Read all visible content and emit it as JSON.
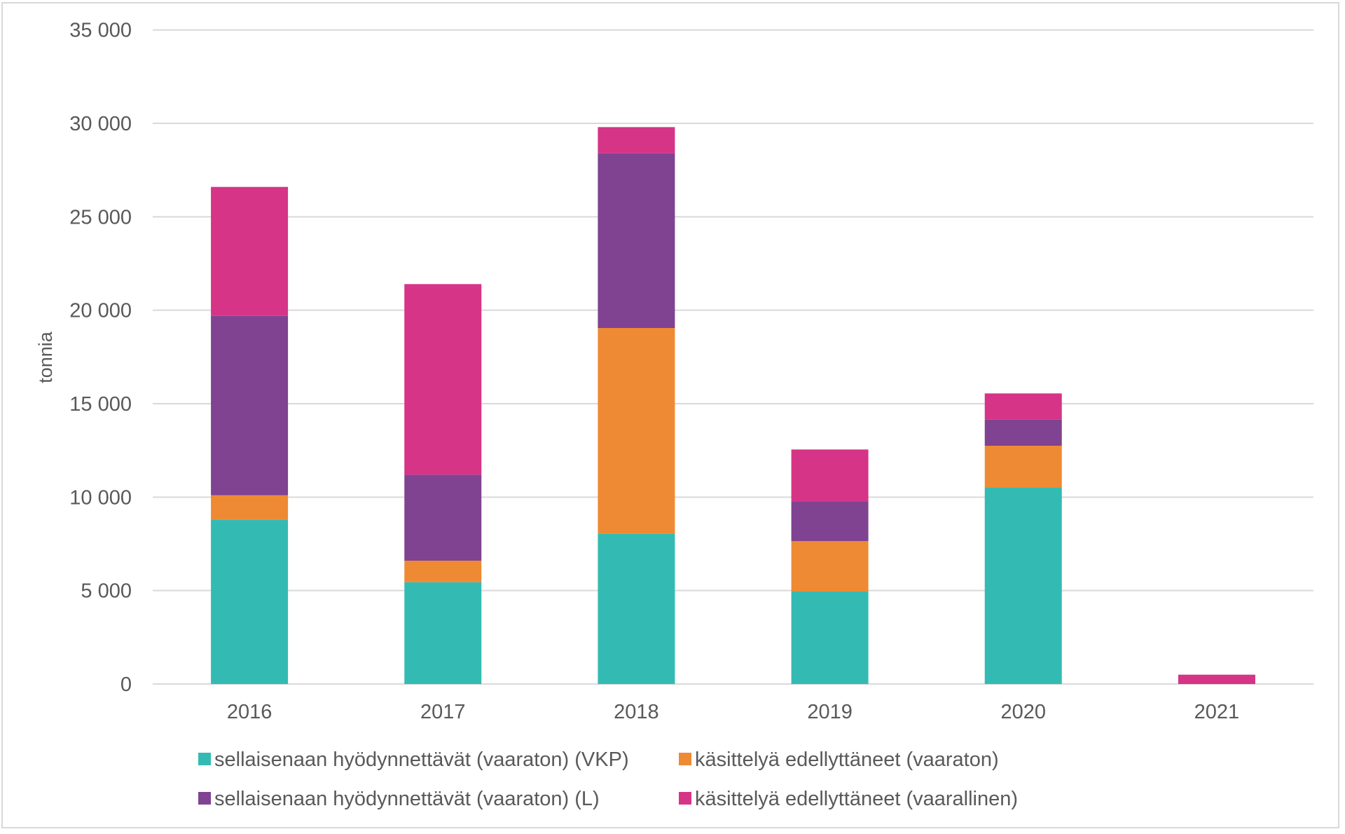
{
  "chart_data": {
    "type": "bar",
    "stacked": true,
    "title": "",
    "xlabel": "",
    "ylabel": "tonnia",
    "ylim": [
      0,
      35000
    ],
    "yticks": [
      0,
      5000,
      10000,
      15000,
      20000,
      25000,
      30000,
      35000
    ],
    "ytick_labels": [
      "0",
      "5 000",
      "10 000",
      "15 000",
      "20 000",
      "25 000",
      "30 000",
      "35 000"
    ],
    "grid": true,
    "legend_position": "bottom",
    "categories": [
      "2016",
      "2017",
      "2018",
      "2019",
      "2020",
      "2021"
    ],
    "series": [
      {
        "name": "sellaisenaan hyödynnettävät (vaaraton) (VKP)",
        "color": "#33BBB3",
        "values": [
          8800,
          5450,
          8050,
          4950,
          10500,
          0
        ]
      },
      {
        "name": "käsittelyä edellyttäneet (vaaraton)",
        "color": "#EE8A33",
        "values": [
          1300,
          1150,
          11000,
          2700,
          2250,
          0
        ]
      },
      {
        "name": "sellaisenaan hyödynnettävät (vaaraton) (L)",
        "color": "#7F4391",
        "values": [
          9600,
          4600,
          9350,
          2100,
          1400,
          0
        ]
      },
      {
        "name": "käsittelyä edellyttäneet (vaarallinen)",
        "color": "#D63487",
        "values": [
          6900,
          10200,
          1400,
          2800,
          1400,
          500
        ]
      }
    ],
    "legend_order": [
      0,
      1,
      2,
      3
    ]
  }
}
